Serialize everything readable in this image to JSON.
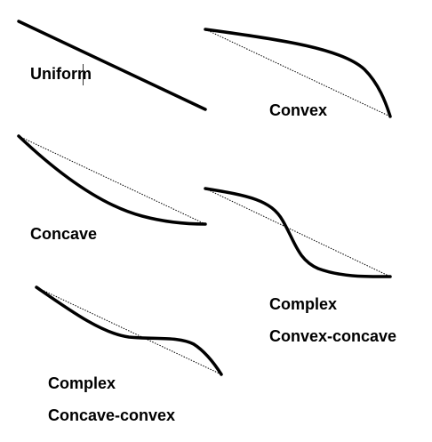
{
  "colors": {
    "curve": "#000000",
    "chord": "#000000",
    "background": "#ffffff"
  },
  "labels": {
    "uniform": "Uniform",
    "convex": "Convex",
    "concave": "Concave",
    "complex_1": "Complex",
    "convex_concave": "Convex-concave",
    "complex_2": "Complex",
    "concave_convex": "Concave-convex"
  }
}
